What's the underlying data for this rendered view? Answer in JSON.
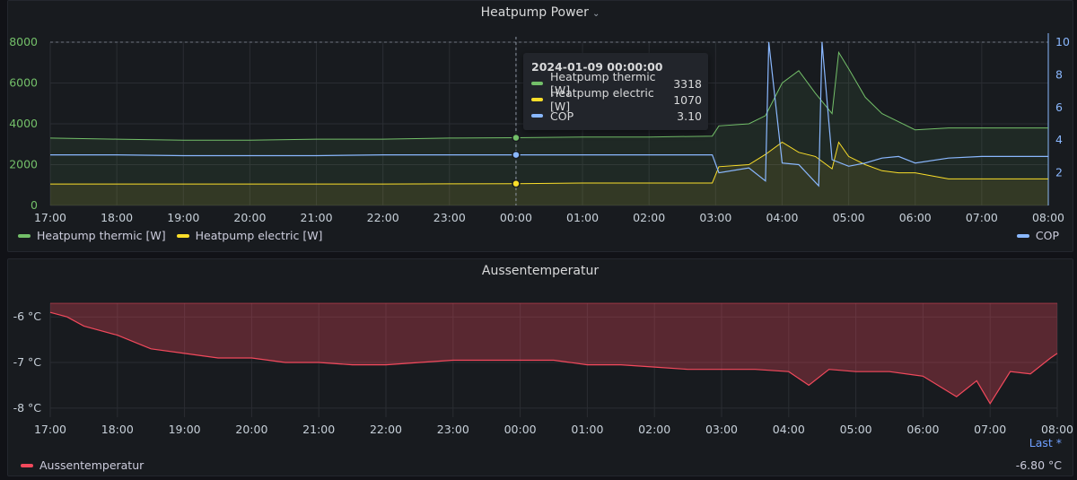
{
  "colors": {
    "thermic": "#73bf69",
    "electric": "#fade2a",
    "cop": "#8ab8ff",
    "temp": "#f2495c"
  },
  "panel1": {
    "title": "Heatpump Power",
    "title_icon": "chevron-down-icon",
    "y_left_ticks": [
      "8000",
      "6000",
      "4000",
      "2000",
      "0"
    ],
    "y_right_ticks": [
      "10",
      "8",
      "6",
      "4",
      "2"
    ],
    "x_ticks": [
      "17:00",
      "18:00",
      "19:00",
      "20:00",
      "21:00",
      "22:00",
      "23:00",
      "00:00",
      "01:00",
      "02:00",
      "03:00",
      "04:00",
      "05:00",
      "06:00",
      "07:00",
      "08:00"
    ],
    "legend_left": [
      "Heatpump thermic [W]",
      "Heatpump electric [W]"
    ],
    "legend_right": "COP",
    "tooltip": {
      "time": "2024-01-09 00:00:00",
      "rows": [
        {
          "label": "Heatpump thermic [W]",
          "value": "3318"
        },
        {
          "label": "Heatpump electric [W]",
          "value": "1070"
        },
        {
          "label": "COP",
          "value": "3.10"
        }
      ]
    }
  },
  "panel2": {
    "title": "Aussentemperatur",
    "y_ticks": [
      "-6 °C",
      "-7 °C",
      "-8 °C"
    ],
    "x_ticks": [
      "17:00",
      "18:00",
      "19:00",
      "20:00",
      "21:00",
      "22:00",
      "23:00",
      "00:00",
      "01:00",
      "02:00",
      "03:00",
      "04:00",
      "05:00",
      "06:00",
      "07:00",
      "08:00"
    ],
    "last_link": "Last *",
    "legend": "Aussentemperatur",
    "last_value": "-6.80 °C"
  },
  "chart_data": [
    {
      "type": "line",
      "title": "Heatpump Power",
      "x_range": [
        "17:00",
        "08:00"
      ],
      "y_left_range": [
        0,
        8000
      ],
      "y_right_range": [
        0,
        10
      ],
      "grid": true,
      "legend": "bottom",
      "series": [
        {
          "name": "Heatpump thermic [W]",
          "axis": "left",
          "x": [
            17,
            18,
            19,
            20,
            21,
            22,
            23,
            24,
            25,
            26,
            26.95,
            27.05,
            27.5,
            27.75,
            28,
            28.25,
            28.5,
            28.75,
            28.85,
            29,
            29.25,
            29.5,
            29.75,
            30,
            30.5,
            31,
            31.5,
            32
          ],
          "values": [
            3300,
            3250,
            3200,
            3200,
            3250,
            3250,
            3300,
            3318,
            3350,
            3350,
            3400,
            3900,
            4000,
            4400,
            6000,
            6600,
            5500,
            4500,
            7500,
            6700,
            5300,
            4500,
            4100,
            3700,
            3800,
            3800,
            3800,
            3800
          ]
        },
        {
          "name": "Heatpump electric [W]",
          "axis": "left",
          "x": [
            17,
            18,
            19,
            20,
            21,
            22,
            23,
            24,
            25,
            26,
            26.95,
            27.05,
            27.5,
            27.75,
            28,
            28.25,
            28.5,
            28.75,
            28.85,
            29,
            29.25,
            29.5,
            29.75,
            30,
            30.5,
            31,
            31.5,
            32
          ],
          "values": [
            1050,
            1050,
            1050,
            1050,
            1050,
            1050,
            1060,
            1070,
            1100,
            1100,
            1100,
            1900,
            2000,
            2500,
            3100,
            2600,
            2400,
            1800,
            3100,
            2400,
            2000,
            1700,
            1600,
            1600,
            1300,
            1300,
            1300,
            1300
          ]
        },
        {
          "name": "COP",
          "axis": "right",
          "x": [
            17,
            18,
            19,
            20,
            21,
            22,
            23,
            24,
            25,
            26,
            26.95,
            27.05,
            27.5,
            27.75,
            27.8,
            28,
            28.25,
            28.55,
            28.6,
            28.75,
            29,
            29.25,
            29.5,
            29.75,
            30,
            30.5,
            31,
            31.5,
            32
          ],
          "values": [
            3.1,
            3.1,
            3.05,
            3.05,
            3.05,
            3.1,
            3.1,
            3.1,
            3.1,
            3.1,
            3.1,
            2.0,
            2.3,
            1.5,
            10,
            2.6,
            2.5,
            1.2,
            10,
            2.8,
            2.4,
            2.6,
            2.9,
            3.0,
            2.6,
            2.9,
            3.0,
            3.0,
            3.0
          ]
        }
      ]
    },
    {
      "type": "area",
      "title": "Aussentemperatur",
      "x_range": [
        "17:00",
        "08:00"
      ],
      "y_range": [
        -8.2,
        -5.7
      ],
      "grid": true,
      "legend": "bottom-left",
      "series": [
        {
          "name": "Aussentemperatur",
          "x": [
            17,
            17.25,
            17.5,
            18,
            18.5,
            19,
            19.5,
            20,
            20.5,
            21,
            21.5,
            22,
            22.5,
            23,
            23.5,
            24,
            24.5,
            25,
            25.5,
            26,
            26.5,
            27,
            27.5,
            28,
            28.3,
            28.6,
            29,
            29.5,
            30,
            30.5,
            30.8,
            31,
            31.3,
            31.6,
            31.9,
            32
          ],
          "values": [
            -5.9,
            -6.0,
            -6.2,
            -6.4,
            -6.7,
            -6.8,
            -6.9,
            -6.9,
            -7.0,
            -7.0,
            -7.05,
            -7.05,
            -7.0,
            -6.95,
            -6.95,
            -6.95,
            -6.95,
            -7.05,
            -7.05,
            -7.1,
            -7.15,
            -7.15,
            -7.15,
            -7.2,
            -7.5,
            -7.15,
            -7.2,
            -7.2,
            -7.3,
            -7.75,
            -7.4,
            -7.9,
            -7.2,
            -7.25,
            -6.9,
            -6.8
          ]
        }
      ]
    }
  ]
}
